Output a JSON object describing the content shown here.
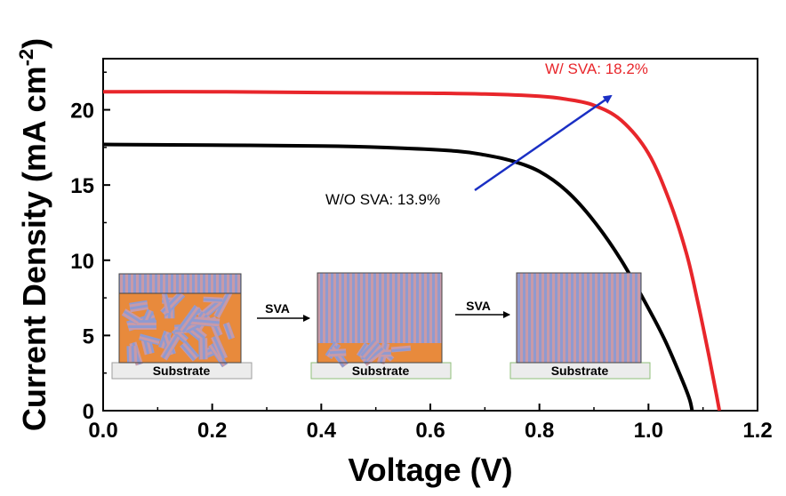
{
  "chart_data": {
    "type": "line",
    "xlabel": "Voltage (V)",
    "ylabel_main": "Current Density (mA cm",
    "ylabel_sup": "-2",
    "ylabel_close": ")",
    "xlim": [
      0.0,
      1.2
    ],
    "ylim": [
      0,
      23.4
    ],
    "x_ticks": [
      "0.0",
      "0.2",
      "0.4",
      "0.6",
      "0.8",
      "1.0",
      "1.2"
    ],
    "y_ticks": [
      "0",
      "5",
      "10",
      "15",
      "20"
    ],
    "grid": false,
    "series": [
      {
        "color": "#e8262b",
        "points": [
          [
            0.0,
            21.2
          ],
          [
            0.2,
            21.2
          ],
          [
            0.4,
            21.15
          ],
          [
            0.6,
            21.1
          ],
          [
            0.7,
            21.05
          ],
          [
            0.8,
            20.9
          ],
          [
            0.85,
            20.7
          ],
          [
            0.9,
            20.3
          ],
          [
            0.95,
            19.3
          ],
          [
            1.0,
            17.1
          ],
          [
            1.04,
            13.8
          ],
          [
            1.07,
            10.4
          ],
          [
            1.09,
            7.3
          ],
          [
            1.11,
            3.8
          ],
          [
            1.125,
            1.0
          ],
          [
            1.13,
            0.0
          ]
        ]
      },
      {
        "color": "#000000",
        "points": [
          [
            0.0,
            17.7
          ],
          [
            0.2,
            17.65
          ],
          [
            0.4,
            17.6
          ],
          [
            0.55,
            17.45
          ],
          [
            0.65,
            17.25
          ],
          [
            0.7,
            17.0
          ],
          [
            0.75,
            16.6
          ],
          [
            0.8,
            15.9
          ],
          [
            0.85,
            14.6
          ],
          [
            0.9,
            12.6
          ],
          [
            0.95,
            10.0
          ],
          [
            1.0,
            6.8
          ],
          [
            1.03,
            4.7
          ],
          [
            1.06,
            2.2
          ],
          [
            1.075,
            0.8
          ],
          [
            1.08,
            0.0
          ]
        ]
      }
    ],
    "annotations": [
      {
        "text": "W/ SVA: 18.2%",
        "color": "#e8262b"
      },
      {
        "text": "W/O SVA: 13.9%",
        "color": "#000000"
      }
    ],
    "arrow_color": "#1a2fc4"
  },
  "inset": {
    "arrow_label_1": "SVA",
    "arrow_label_2": "SVA",
    "substrate_label": "Substrate",
    "colors": {
      "orange": "#e88a3c",
      "stripe_blue": "#8f9ad0",
      "stripe_pink": "#c89aa8",
      "substrate_fill": "#ececec",
      "substrate_border_gray": "#9e9e9e",
      "substrate_border_green": "#8fbf7a"
    }
  }
}
